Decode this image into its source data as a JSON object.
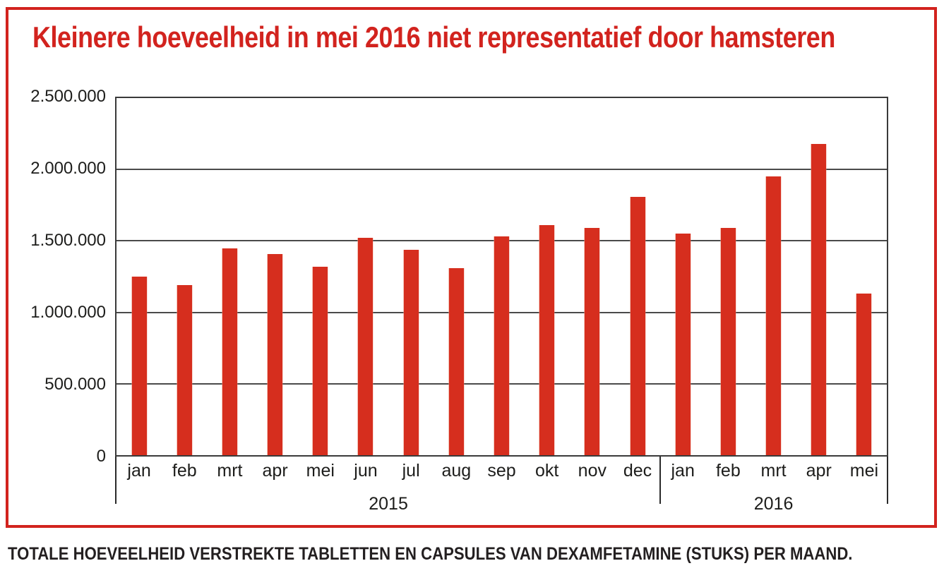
{
  "title": "Kleinere hoeveelheid in mei 2016 niet representatief door hamsteren",
  "caption": "TOTALE HOEVEELHEID VERSTREKTE TABLETTEN EN CAPSULES VAN DEXAMFETAMINE (STUKS) PER MAAND.",
  "chart_data": {
    "type": "bar",
    "title": "Kleinere hoeveelheid in mei 2016 niet representatief door hamsteren",
    "caption": "TOTALE HOEVEELHEID VERSTREKTE TABLETTEN EN CAPSULES VAN DEXAMFETAMINE (STUKS) PER MAAND.",
    "categories": [
      "jan",
      "feb",
      "mrt",
      "apr",
      "mei",
      "jun",
      "jul",
      "aug",
      "sep",
      "okt",
      "nov",
      "dec",
      "jan",
      "feb",
      "mrt",
      "apr",
      "mei"
    ],
    "values": [
      1250000,
      1190000,
      1450000,
      1410000,
      1320000,
      1520000,
      1440000,
      1310000,
      1530000,
      1610000,
      1590000,
      1810000,
      1550000,
      1590000,
      1950000,
      2180000,
      1130000
    ],
    "year_groups": [
      {
        "label": "2015",
        "start": 0,
        "count": 12
      },
      {
        "label": "2016",
        "start": 12,
        "count": 5
      }
    ],
    "y_ticks": [
      {
        "label": "2.500.000",
        "value": 2500000
      },
      {
        "label": "2.000.000",
        "value": 2000000
      },
      {
        "label": "1.500.000",
        "value": 1500000
      },
      {
        "label": "1.000.000",
        "value": 1000000
      },
      {
        "label": "500.000",
        "value": 500000
      },
      {
        "label": "0",
        "value": 0
      }
    ],
    "ylim": [
      0,
      2500000
    ],
    "xlabel": "",
    "ylabel": "",
    "grid": true,
    "legend": "none",
    "bar_color": "#d62e1e",
    "accent_red": "#d2231e",
    "text_color": "#1d1d1b",
    "grid_color": "#4a4a4a"
  }
}
